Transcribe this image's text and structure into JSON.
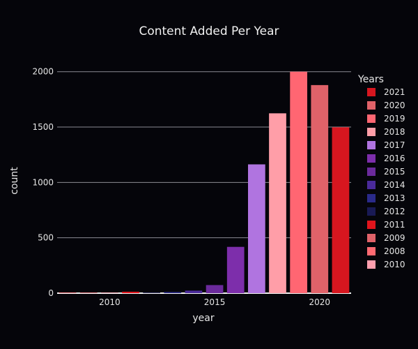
{
  "chart_data": {
    "type": "bar",
    "title": "Content Added Per Year",
    "xlabel": "year",
    "ylabel": "count",
    "xlim": [
      2007.5,
      2021.5
    ],
    "ylim": [
      0,
      2080
    ],
    "x_ticks": [
      2010,
      2015,
      2020
    ],
    "y_ticks": [
      0,
      500,
      1000,
      1500,
      2000
    ],
    "grid": true,
    "legend_title": "Years",
    "legend_placement": "right",
    "series": [
      {
        "name": "2021",
        "x": 2021,
        "value": 1498,
        "color": "#d7161f"
      },
      {
        "name": "2020",
        "x": 2020,
        "value": 1879,
        "color": "#e06269"
      },
      {
        "name": "2019",
        "x": 2019,
        "value": 2000,
        "color": "#ff6672"
      },
      {
        "name": "2018",
        "x": 2018,
        "value": 1624,
        "color": "#ff9ea8"
      },
      {
        "name": "2017",
        "x": 2017,
        "value": 1163,
        "color": "#b074e0"
      },
      {
        "name": "2016",
        "x": 2016,
        "value": 418,
        "color": "#7d2eab"
      },
      {
        "name": "2015",
        "x": 2015,
        "value": 73,
        "color": "#6b2a9c"
      },
      {
        "name": "2014",
        "x": 2014,
        "value": 23,
        "color": "#4a2a9a"
      },
      {
        "name": "2013",
        "x": 2013,
        "value": 10,
        "color": "#2a2a8a"
      },
      {
        "name": "2012",
        "x": 2012,
        "value": 3,
        "color": "#191a55"
      },
      {
        "name": "2011",
        "x": 2011,
        "value": 13,
        "color": "#e0141c"
      },
      {
        "name": "2009",
        "x": 2009,
        "value": 2,
        "color": "#e06269"
      },
      {
        "name": "2008",
        "x": 2008,
        "value": 2,
        "color": "#ff6a72"
      },
      {
        "name": "2010",
        "x": 2010,
        "value": 1,
        "color": "#ff9fae"
      }
    ]
  }
}
